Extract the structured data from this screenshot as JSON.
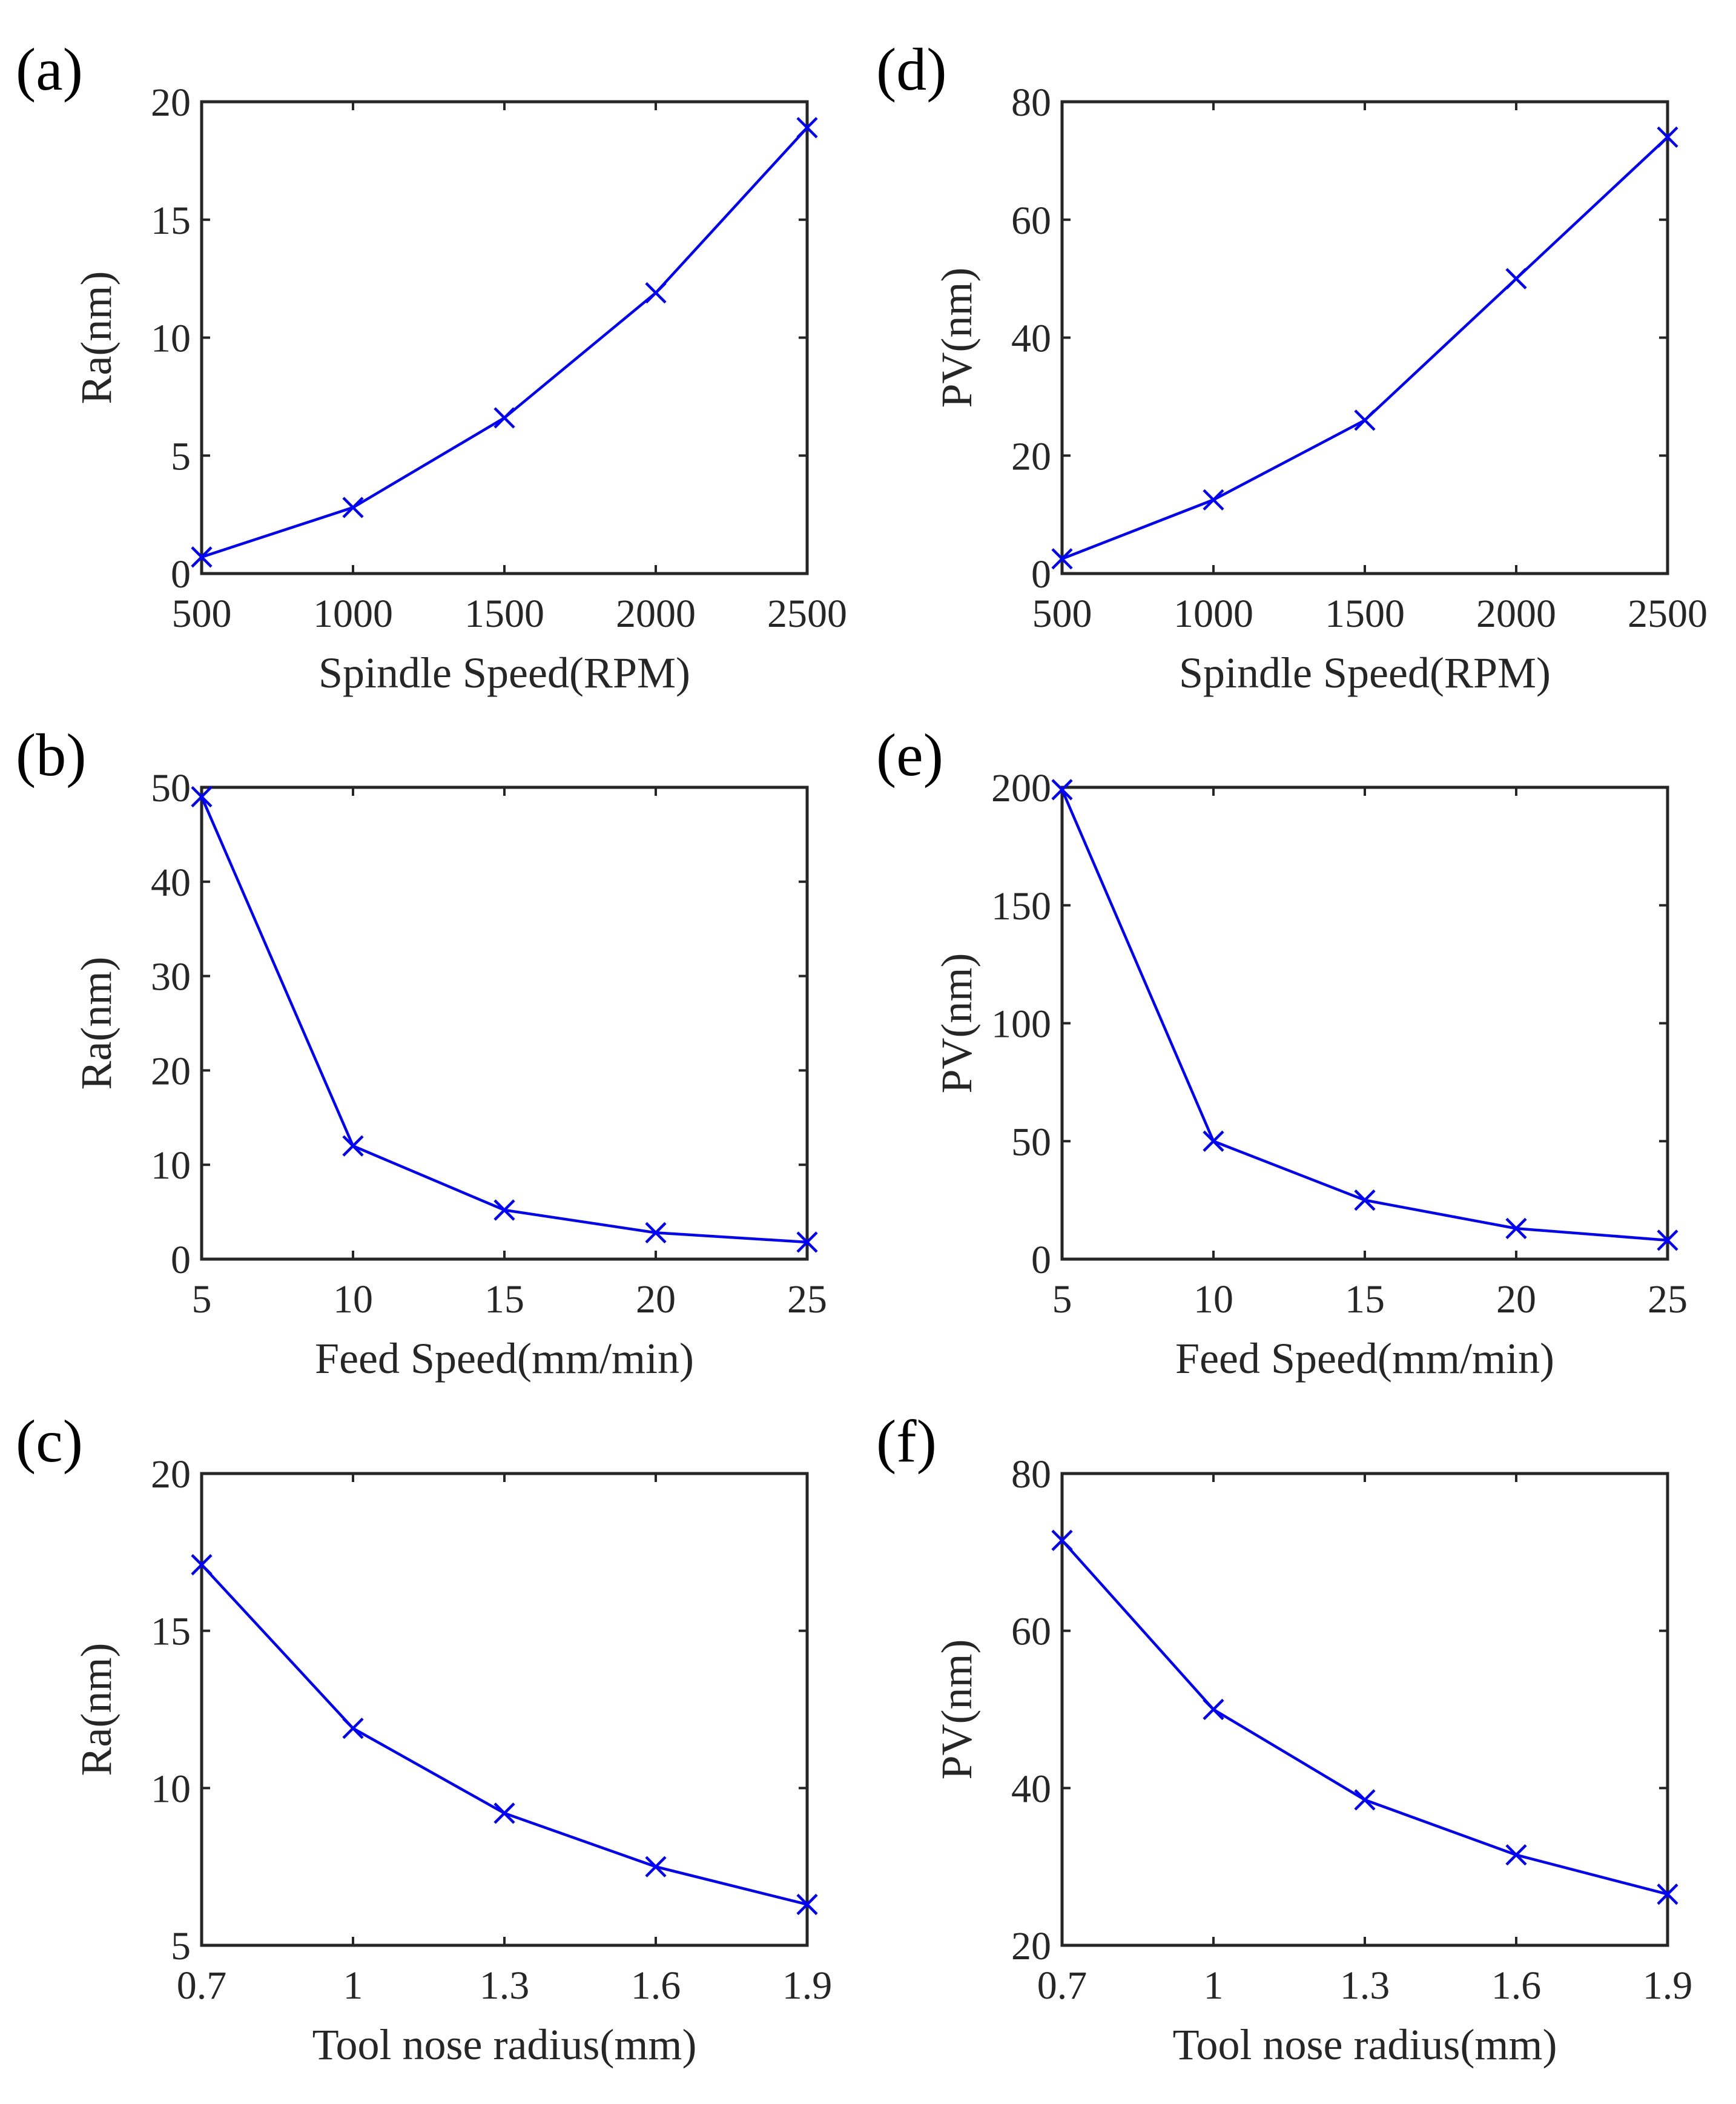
{
  "colors": {
    "series": "#0000ff",
    "axis": "#262626"
  },
  "chart_data": [
    {
      "panel": "(a)",
      "type": "line",
      "marker": "x",
      "x": [
        500,
        1000,
        1500,
        2000,
        2500
      ],
      "y": [
        0.7,
        2.8,
        6.6,
        11.9,
        18.9
      ],
      "xlim": [
        500,
        2500
      ],
      "ylim": [
        0,
        20
      ],
      "xticks": [
        500,
        1000,
        1500,
        2000,
        2500
      ],
      "xtick_labels": [
        "500",
        "1000",
        "1500",
        "2000",
        "2500"
      ],
      "yticks": [
        0,
        5,
        10,
        15,
        20
      ],
      "ytick_labels": [
        "0",
        "5",
        "10",
        "15",
        "20"
      ],
      "xlabel": "Spindle Speed(RPM)",
      "ylabel": "Ra(nm)"
    },
    {
      "panel": "(b)",
      "type": "line",
      "marker": "x",
      "x": [
        5,
        10,
        15,
        20,
        25
      ],
      "y": [
        49,
        12,
        5.2,
        2.8,
        1.8
      ],
      "xlim": [
        5,
        25
      ],
      "ylim": [
        0,
        50
      ],
      "xticks": [
        5,
        10,
        15,
        20,
        25
      ],
      "xtick_labels": [
        "5",
        "10",
        "15",
        "20",
        "25"
      ],
      "yticks": [
        0,
        10,
        20,
        30,
        40,
        50
      ],
      "ytick_labels": [
        "0",
        "10",
        "20",
        "30",
        "40",
        "50"
      ],
      "xlabel": "Feed Speed(mm/min)",
      "ylabel": "Ra(nm)"
    },
    {
      "panel": "(c)",
      "type": "line",
      "marker": "x",
      "x": [
        0.7,
        1.0,
        1.3,
        1.6,
        1.9
      ],
      "y": [
        17.1,
        11.9,
        9.2,
        7.5,
        6.3
      ],
      "xlim": [
        0.7,
        1.9
      ],
      "ylim": [
        5,
        20
      ],
      "xticks": [
        0.7,
        1.0,
        1.3,
        1.6,
        1.9
      ],
      "xtick_labels": [
        "0.7",
        "1",
        "1.3",
        "1.6",
        "1.9"
      ],
      "yticks": [
        5,
        10,
        15,
        20
      ],
      "ytick_labels": [
        "5",
        "10",
        "15",
        "20"
      ],
      "xlabel": "Tool nose radius(mm)",
      "ylabel": "Ra(nm)"
    },
    {
      "panel": "(d)",
      "type": "line",
      "marker": "x",
      "x": [
        500,
        1000,
        1500,
        2000,
        2500
      ],
      "y": [
        2.5,
        12.5,
        26,
        50,
        74
      ],
      "xlim": [
        500,
        2500
      ],
      "ylim": [
        0,
        80
      ],
      "xticks": [
        500,
        1000,
        1500,
        2000,
        2500
      ],
      "xtick_labels": [
        "500",
        "1000",
        "1500",
        "2000",
        "2500"
      ],
      "yticks": [
        0,
        20,
        40,
        60,
        80
      ],
      "ytick_labels": [
        "0",
        "20",
        "40",
        "60",
        "80"
      ],
      "xlabel": "Spindle Speed(RPM)",
      "ylabel": "PV(nm)"
    },
    {
      "panel": "(e)",
      "type": "line",
      "marker": "x",
      "x": [
        5,
        10,
        15,
        20,
        25
      ],
      "y": [
        199,
        50,
        25,
        13,
        8
      ],
      "xlim": [
        5,
        25
      ],
      "ylim": [
        0,
        200
      ],
      "xticks": [
        5,
        10,
        15,
        20,
        25
      ],
      "xtick_labels": [
        "5",
        "10",
        "15",
        "20",
        "25"
      ],
      "yticks": [
        0,
        50,
        100,
        150,
        200
      ],
      "ytick_labels": [
        "0",
        "50",
        "100",
        "150",
        "200"
      ],
      "xlabel": "Feed Speed(mm/min)",
      "ylabel": "PV(nm)"
    },
    {
      "panel": "(f)",
      "type": "line",
      "marker": "x",
      "x": [
        0.7,
        1.0,
        1.3,
        1.6,
        1.9
      ],
      "y": [
        71.5,
        50,
        38.5,
        31.5,
        26.5
      ],
      "xlim": [
        0.7,
        1.9
      ],
      "ylim": [
        20,
        80
      ],
      "xticks": [
        0.7,
        1.0,
        1.3,
        1.6,
        1.9
      ],
      "xtick_labels": [
        "0.7",
        "1",
        "1.3",
        "1.6",
        "1.9"
      ],
      "yticks": [
        20,
        40,
        60,
        80
      ],
      "ytick_labels": [
        "20",
        "40",
        "60",
        "80"
      ],
      "xlabel": "Tool nose radius(mm)",
      "ylabel": "PV(nm)"
    }
  ]
}
